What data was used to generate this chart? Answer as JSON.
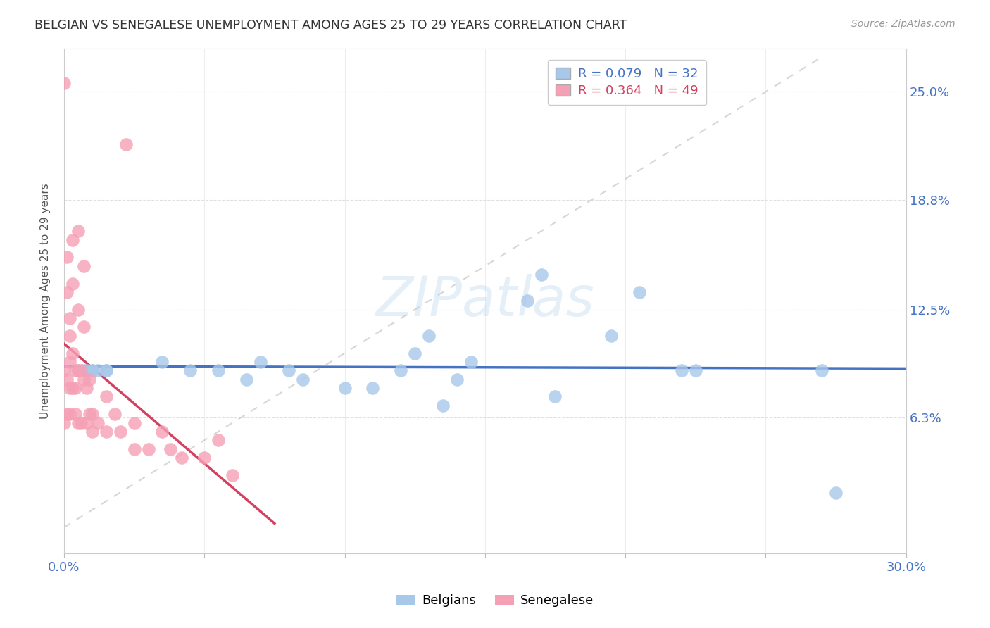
{
  "title": "BELGIAN VS SENEGALESE UNEMPLOYMENT AMONG AGES 25 TO 29 YEARS CORRELATION CHART",
  "source": "Source: ZipAtlas.com",
  "ylabel": "Unemployment Among Ages 25 to 29 years",
  "xlim": [
    0.0,
    0.3
  ],
  "ylim": [
    -0.015,
    0.275
  ],
  "yticks": [
    0.063,
    0.125,
    0.188,
    0.25
  ],
  "ytick_labels": [
    "6.3%",
    "12.5%",
    "18.8%",
    "25.0%"
  ],
  "xticks": [
    0.0,
    0.05,
    0.1,
    0.15,
    0.2,
    0.25,
    0.3
  ],
  "belgian_color": "#a8c8ea",
  "senegalese_color": "#f5a0b5",
  "trend_belgian_color": "#4472c4",
  "trend_senegalese_color": "#d44060",
  "diagonal_color": "#cccccc",
  "watermark": "ZIPatlas",
  "legend_belgian_text": "R = 0.079   N = 32",
  "legend_senegalese_text": "R = 0.364   N = 49",
  "background_color": "#ffffff",
  "grid_color": "#dddddd",
  "title_color": "#333333",
  "tick_label_color": "#4472c4",
  "belgian_x": [
    0.005,
    0.007,
    0.008,
    0.01,
    0.01,
    0.012,
    0.015,
    0.015,
    0.035,
    0.045,
    0.055,
    0.065,
    0.07,
    0.08,
    0.085,
    0.1,
    0.11,
    0.12,
    0.125,
    0.13,
    0.135,
    0.14,
    0.145,
    0.165,
    0.17,
    0.175,
    0.195,
    0.205,
    0.22,
    0.225,
    0.27,
    0.275
  ],
  "belgian_y": [
    0.09,
    0.09,
    0.09,
    0.09,
    0.09,
    0.09,
    0.09,
    0.09,
    0.095,
    0.09,
    0.09,
    0.085,
    0.095,
    0.09,
    0.085,
    0.08,
    0.08,
    0.09,
    0.1,
    0.11,
    0.07,
    0.085,
    0.095,
    0.13,
    0.145,
    0.075,
    0.11,
    0.135,
    0.09,
    0.09,
    0.09,
    0.02
  ],
  "senegalese_x": [
    0.0,
    0.0,
    0.0,
    0.001,
    0.001,
    0.001,
    0.001,
    0.002,
    0.002,
    0.002,
    0.002,
    0.002,
    0.003,
    0.003,
    0.003,
    0.003,
    0.004,
    0.004,
    0.004,
    0.005,
    0.005,
    0.005,
    0.005,
    0.006,
    0.006,
    0.007,
    0.007,
    0.007,
    0.008,
    0.008,
    0.009,
    0.009,
    0.01,
    0.01,
    0.012,
    0.015,
    0.015,
    0.018,
    0.02,
    0.022,
    0.025,
    0.025,
    0.03,
    0.035,
    0.038,
    0.042,
    0.05,
    0.055,
    0.06
  ],
  "senegalese_y": [
    0.255,
    0.09,
    0.06,
    0.155,
    0.135,
    0.085,
    0.065,
    0.12,
    0.11,
    0.095,
    0.08,
    0.065,
    0.165,
    0.14,
    0.1,
    0.08,
    0.09,
    0.08,
    0.065,
    0.17,
    0.125,
    0.09,
    0.06,
    0.09,
    0.06,
    0.15,
    0.115,
    0.085,
    0.08,
    0.06,
    0.085,
    0.065,
    0.065,
    0.055,
    0.06,
    0.075,
    0.055,
    0.065,
    0.055,
    0.22,
    0.06,
    0.045,
    0.045,
    0.055,
    0.045,
    0.04,
    0.04,
    0.05,
    0.03
  ]
}
